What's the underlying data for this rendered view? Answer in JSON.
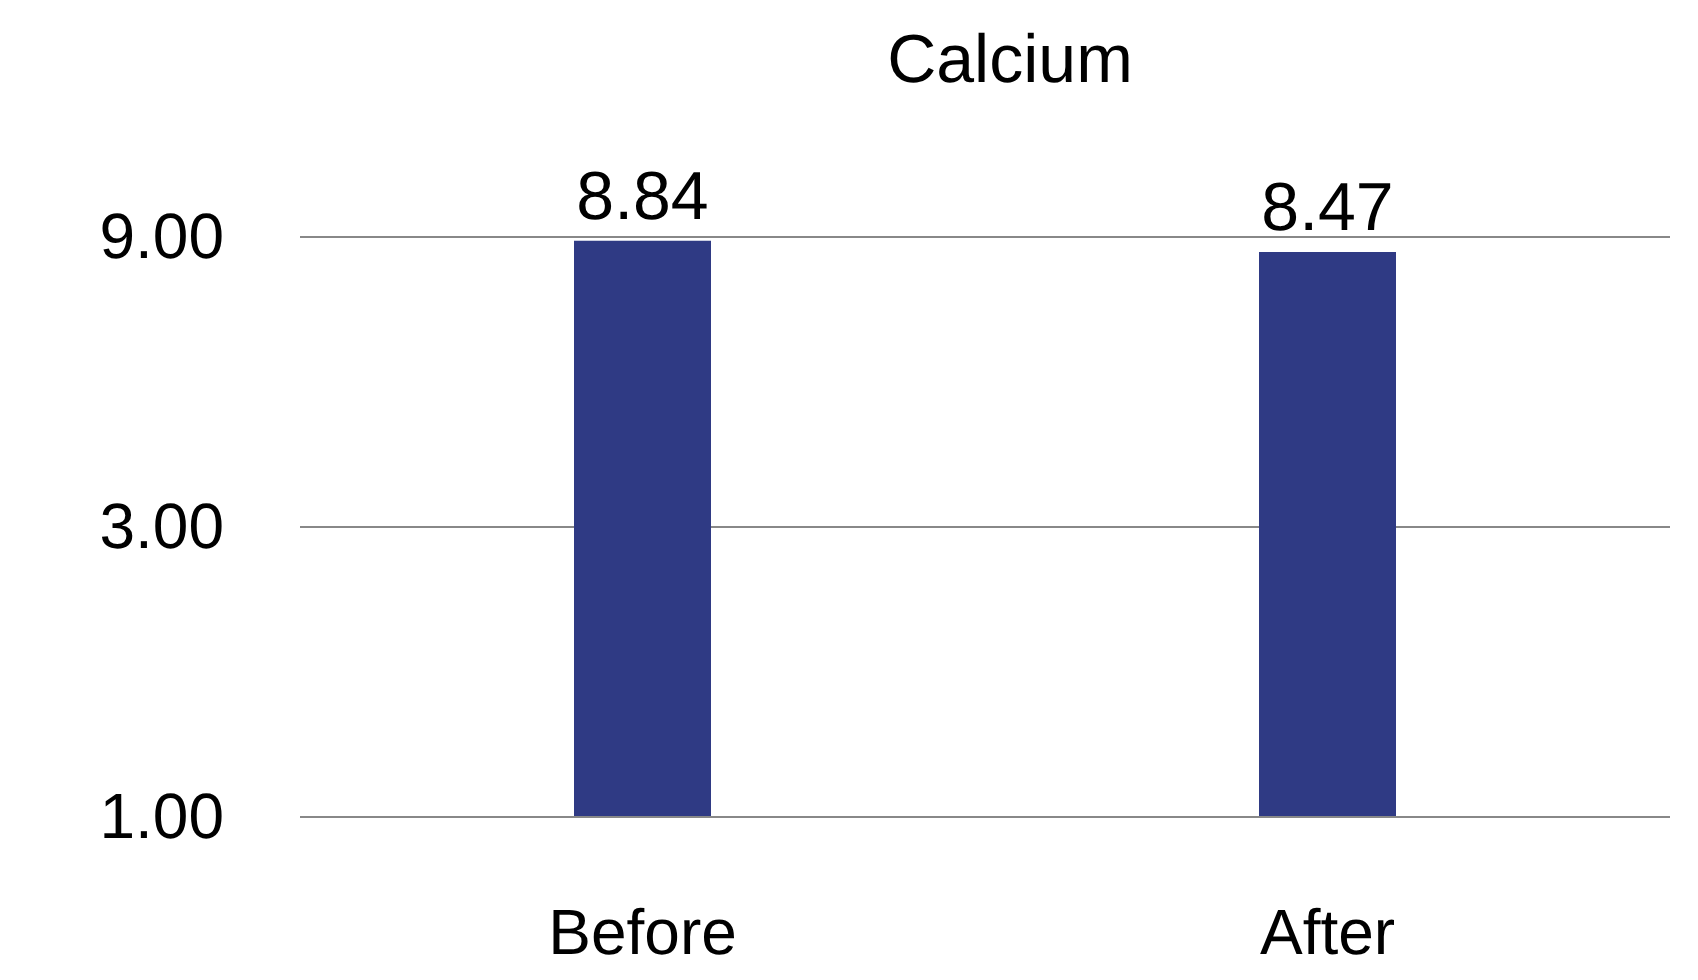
{
  "chart_data": {
    "type": "bar",
    "title": "Calcium",
    "categories": [
      "Before",
      "After"
    ],
    "values": [
      8.84,
      8.47
    ],
    "color": "#2f3a84",
    "data_labels": true,
    "log": "y",
    "ylim": [
      1,
      9
    ],
    "yticks": [
      {
        "value": 1,
        "label": "1.00"
      },
      {
        "value": 3,
        "label": "3.00"
      },
      {
        "value": 9,
        "label": "9.00"
      }
    ],
    "grid": "y"
  }
}
